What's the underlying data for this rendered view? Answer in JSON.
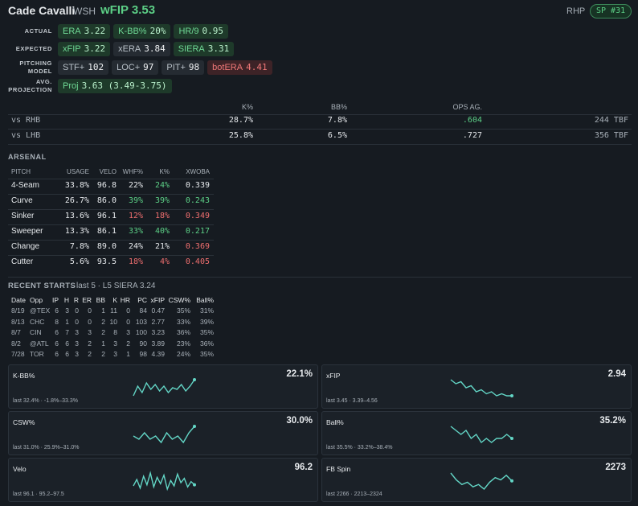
{
  "header": {
    "name": "Cade Cavalli",
    "team": "WSH",
    "metric": "wFIP 3.53",
    "hand": "RHP",
    "role": "SP #31"
  },
  "metrics": [
    {
      "label": "ACTUAL",
      "chips": [
        {
          "key": "ERA",
          "value": "3.22",
          "tone": "green"
        },
        {
          "key": "K-BB%",
          "value": "20%",
          "tone": "green"
        },
        {
          "key": "HR/9",
          "value": "0.95",
          "tone": "green"
        }
      ]
    },
    {
      "label": "EXPECTED",
      "chips": [
        {
          "key": "xFIP",
          "value": "3.22",
          "tone": "green"
        },
        {
          "key": "xERA",
          "value": "3.84",
          "tone": "gray"
        },
        {
          "key": "SIERA",
          "value": "3.31",
          "tone": "green"
        }
      ]
    },
    {
      "label": "PITCHING MODEL",
      "chips": [
        {
          "key": "STF+",
          "value": "102",
          "tone": "gray"
        },
        {
          "key": "LOC+",
          "value": "97",
          "tone": "gray"
        },
        {
          "key": "PIT+",
          "value": "98",
          "tone": "gray"
        },
        {
          "key": "botERA",
          "value": "4.41",
          "tone": "red"
        }
      ]
    },
    {
      "label": "AVG. PROJECTION",
      "chips": [
        {
          "key": "Proj",
          "value": "3.63 (3.49-3.75)",
          "tone": "green"
        }
      ]
    }
  ],
  "splits": {
    "columns": [
      "K%",
      "BB%",
      "OPS AG."
    ],
    "rows": [
      {
        "cells": [
          "vs RHB",
          "28.7%",
          "7.8%",
          ".604",
          "244 TBF"
        ],
        "colors": [
          "gray",
          "white",
          "white",
          "green",
          "gray"
        ]
      },
      {
        "cells": [
          "vs LHB",
          "25.8%",
          "6.5%",
          ".727",
          "356 TBF"
        ],
        "colors": [
          "gray",
          "white",
          "white",
          "white",
          "gray"
        ]
      }
    ]
  },
  "arsenal": {
    "title": "ARSENAL",
    "columns": [
      "PITCH",
      "USAGE",
      "VELO",
      "WHF%",
      "K%",
      "XWOBA"
    ],
    "rows": [
      {
        "cells": [
          "4-Seam",
          "33.8%",
          "96.8",
          "22%",
          "24%",
          "0.339"
        ],
        "colors": [
          "white",
          "white",
          "white",
          "white",
          "green",
          "white"
        ]
      },
      {
        "cells": [
          "Curve",
          "26.7%",
          "86.0",
          "39%",
          "39%",
          "0.243"
        ],
        "colors": [
          "white",
          "white",
          "white",
          "green",
          "green",
          "green"
        ]
      },
      {
        "cells": [
          "Sinker",
          "13.6%",
          "96.1",
          "12%",
          "18%",
          "0.349"
        ],
        "colors": [
          "white",
          "white",
          "white",
          "red",
          "red",
          "red"
        ]
      },
      {
        "cells": [
          "Sweeper",
          "13.3%",
          "86.1",
          "33%",
          "40%",
          "0.217"
        ],
        "colors": [
          "white",
          "white",
          "white",
          "green",
          "green",
          "green"
        ]
      },
      {
        "cells": [
          "Change",
          "7.8%",
          "89.0",
          "24%",
          "21%",
          "0.369"
        ],
        "colors": [
          "white",
          "white",
          "white",
          "white",
          "white",
          "red"
        ]
      },
      {
        "cells": [
          "Cutter",
          "5.6%",
          "93.5",
          "18%",
          "4%",
          "0.405"
        ],
        "colors": [
          "white",
          "white",
          "white",
          "red",
          "red",
          "red"
        ]
      }
    ]
  },
  "recent": {
    "title": "RECENT STARTS",
    "subtitle": "last 5 · L5 SIERA 3.24",
    "columns": [
      "Date",
      "Opp",
      "IP",
      "H",
      "R",
      "ER",
      "BB",
      "K",
      "HR",
      "PC",
      "xFIP",
      "CSW%",
      "Ball%"
    ],
    "rows": [
      [
        "8/19",
        "@TEX",
        "6",
        "3",
        "0",
        "0",
        "1",
        "11",
        "0",
        "84",
        "0.47",
        "35%",
        "31%"
      ],
      [
        "8/13",
        "CHC",
        "8",
        "1",
        "0",
        "0",
        "2",
        "10",
        "0",
        "103",
        "2.77",
        "33%",
        "39%"
      ],
      [
        "8/7",
        "CIN",
        "6",
        "7",
        "3",
        "3",
        "2",
        "8",
        "3",
        "100",
        "3.23",
        "36%",
        "35%"
      ],
      [
        "8/2",
        "@ATL",
        "6",
        "6",
        "3",
        "2",
        "1",
        "3",
        "2",
        "90",
        "3.89",
        "23%",
        "36%"
      ],
      [
        "7/28",
        "TOR",
        "6",
        "6",
        "3",
        "2",
        "2",
        "3",
        "1",
        "98",
        "4.39",
        "24%",
        "35%"
      ]
    ]
  },
  "cards": [
    {
      "title": "K-BB%",
      "value": "22.1%",
      "footer": "last 32.4% · -1.8%–33.3%",
      "spark": [
        18,
        24,
        20,
        26,
        22,
        25,
        21,
        24,
        20,
        23,
        22,
        25,
        21,
        24,
        28
      ]
    },
    {
      "title": "xFIP",
      "value": "2.94",
      "footer": "last 3.45 · 3.39–4.56",
      "spark": [
        4.4,
        4.2,
        4.3,
        4.0,
        4.1,
        3.8,
        3.9,
        3.7,
        3.8,
        3.6,
        3.7,
        3.6,
        3.6
      ]
    },
    {
      "title": "CSW%",
      "value": "30.0%",
      "footer": "last 31.0% · 25.9%–31.0%",
      "spark": [
        28,
        27,
        29,
        27,
        28,
        26,
        29,
        27,
        28,
        26,
        29,
        31
      ]
    },
    {
      "title": "Ball%",
      "value": "35.2%",
      "footer": "last 35.5% · 33.2%–38.4%",
      "spark": [
        38,
        37,
        36,
        37,
        35,
        36,
        34,
        35,
        34,
        35,
        35,
        36,
        35
      ]
    },
    {
      "title": "Velo",
      "value": "96.2",
      "footer": "last 96.1 · 95.2–97.5",
      "spark": [
        96.0,
        96.6,
        95.8,
        96.9,
        96.1,
        97.2,
        95.9,
        96.8,
        96.2,
        97.0,
        95.7,
        96.5,
        96.0,
        97.1,
        96.3,
        96.7,
        95.9,
        96.4,
        96.1
      ]
    },
    {
      "title": "FB Spin",
      "value": "2273",
      "footer": "last 2266 · 2213–2324",
      "spark": [
        2300,
        2270,
        2250,
        2260,
        2240,
        2250,
        2230,
        2260,
        2280,
        2270,
        2290,
        2266
      ]
    }
  ]
}
